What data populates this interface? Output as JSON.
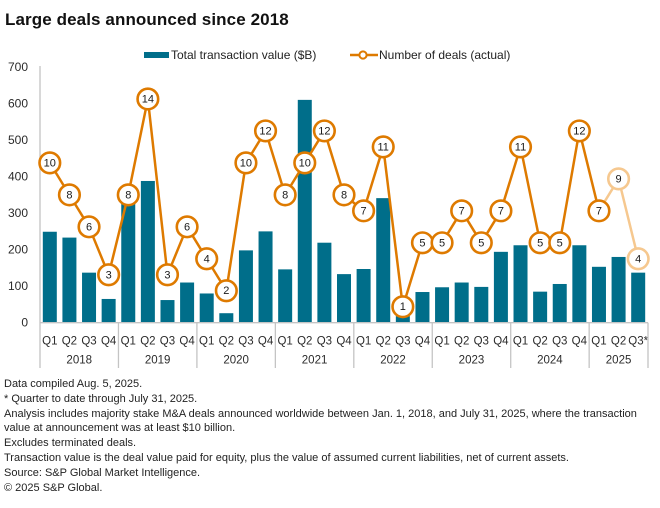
{
  "title": "Large deals announced since 2018",
  "legend": {
    "bars_label": "Total transaction value ($B)",
    "line_label": "Number of deals (actual)"
  },
  "colors": {
    "bar": "#006E8A",
    "line": "#DE7A00",
    "line_muted": "#F6C88F",
    "axis": "#C4C4C4",
    "text": "#2B2B2B"
  },
  "chart_data": {
    "type": "bar",
    "title": "Large deals announced since 2018",
    "xlabel": "",
    "ylabel": "",
    "ylim": [
      0,
      700
    ],
    "yticks": [
      0,
      100,
      200,
      300,
      400,
      500,
      600,
      700
    ],
    "y2lim": [
      0,
      16
    ],
    "y2_visible": false,
    "grid": false,
    "legend_position": "top",
    "categories": [
      "2018 Q1",
      "2018 Q2",
      "2018 Q3",
      "2018 Q4",
      "2019 Q1",
      "2019 Q2",
      "2019 Q3",
      "2019 Q4",
      "2020 Q1",
      "2020 Q2",
      "2020 Q3",
      "2020 Q4",
      "2021 Q1",
      "2021 Q2",
      "2021 Q3",
      "2021 Q4",
      "2022 Q1",
      "2022 Q2",
      "2022 Q3",
      "2022 Q4",
      "2023 Q1",
      "2023 Q2",
      "2023 Q3",
      "2023 Q4",
      "2024 Q1",
      "2024 Q2",
      "2024 Q3",
      "2024 Q4",
      "2025 Q1",
      "2025 Q2",
      "2025 Q3*"
    ],
    "year_groups": [
      {
        "year": "2018",
        "quarters": [
          "Q1",
          "Q2",
          "Q3",
          "Q4"
        ]
      },
      {
        "year": "2019",
        "quarters": [
          "Q1",
          "Q2",
          "Q3",
          "Q4"
        ]
      },
      {
        "year": "2020",
        "quarters": [
          "Q1",
          "Q2",
          "Q3",
          "Q4"
        ]
      },
      {
        "year": "2021",
        "quarters": [
          "Q1",
          "Q2",
          "Q3",
          "Q4"
        ]
      },
      {
        "year": "2022",
        "quarters": [
          "Q1",
          "Q2",
          "Q3",
          "Q4"
        ]
      },
      {
        "year": "2023",
        "quarters": [
          "Q1",
          "Q2",
          "Q3",
          "Q4"
        ]
      },
      {
        "year": "2024",
        "quarters": [
          "Q1",
          "Q2",
          "Q3",
          "Q4"
        ]
      },
      {
        "year": "2025",
        "quarters": [
          "Q1",
          "Q2",
          "Q3*"
        ]
      }
    ],
    "series": [
      {
        "name": "Total transaction value ($B)",
        "type": "bar",
        "axis": "primary",
        "values": [
          249,
          233,
          137,
          65,
          330,
          388,
          62,
          110,
          80,
          26,
          198,
          250,
          146,
          610,
          219,
          133,
          147,
          341,
          18,
          84,
          97,
          110,
          98,
          194,
          212,
          85,
          106,
          212,
          153,
          180,
          137
        ]
      },
      {
        "name": "Number of deals (actual)",
        "type": "line",
        "axis": "secondary",
        "values": [
          10,
          8,
          6,
          3,
          8,
          14,
          3,
          6,
          4,
          2,
          10,
          12,
          8,
          10,
          12,
          8,
          7,
          11,
          1,
          5,
          5,
          7,
          5,
          7,
          11,
          5,
          5,
          12,
          7,
          9,
          4
        ],
        "muted": [
          false,
          false,
          false,
          false,
          false,
          false,
          false,
          false,
          false,
          false,
          false,
          false,
          false,
          false,
          false,
          false,
          false,
          false,
          false,
          false,
          false,
          false,
          false,
          false,
          false,
          false,
          false,
          false,
          false,
          true,
          true
        ]
      }
    ]
  },
  "footnotes": [
    "Data compiled Aug. 5, 2025.",
    "* Quarter to date through July 31, 2025.",
    "Analysis includes majority stake M&A deals announced worldwide between Jan. 1, 2018, and July 31, 2025, where the transaction value at announcement was at least $10 billion.",
    "Excludes terminated deals.",
    "Transaction value is the deal value paid for equity, plus the value of assumed current liabilities, net of current assets.",
    "Source: S&P Global Market Intelligence.",
    "© 2025 S&P Global."
  ]
}
